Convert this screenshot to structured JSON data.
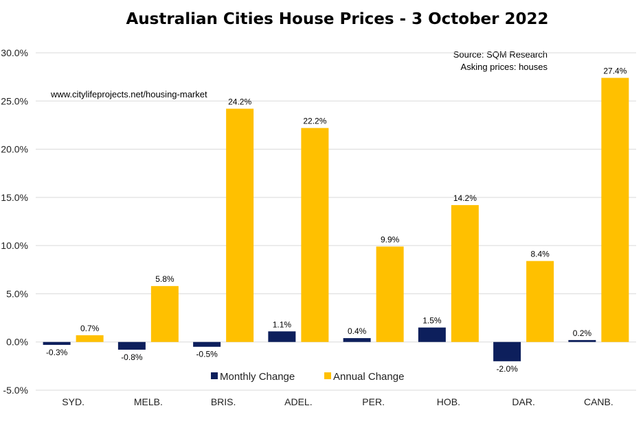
{
  "chart_data": {
    "type": "bar",
    "title": "Australian Cities House Prices - 3 October 2022",
    "notes": {
      "source": "Source:  SQM Research",
      "asking": "Asking prices: houses",
      "url": "www.citylifeprojects.net/housing-market"
    },
    "categories": [
      "SYD.",
      "MELB.",
      "BRIS.",
      "ADEL.",
      "PER.",
      "HOB.",
      "DAR.",
      "CANB."
    ],
    "series": [
      {
        "name": "Monthly Change",
        "color": "#0d1f5c",
        "values": [
          -0.3,
          -0.8,
          -0.5,
          1.1,
          0.4,
          1.5,
          -2.0,
          0.2
        ],
        "labels": [
          "-0.3%",
          "-0.8%",
          "-0.5%",
          "1.1%",
          "0.4%",
          "1.5%",
          "-2.0%",
          "0.2%"
        ]
      },
      {
        "name": "Annual Change",
        "color": "#ffc000",
        "values": [
          0.7,
          5.8,
          24.2,
          22.2,
          9.9,
          14.2,
          8.4,
          27.4
        ],
        "labels": [
          "0.7%",
          "5.8%",
          "24.2%",
          "22.2%",
          "9.9%",
          "14.2%",
          "8.4%",
          "27.4%"
        ]
      }
    ],
    "ylim": [
      -5,
      30
    ],
    "yticks": [
      30,
      25,
      20,
      15,
      10,
      5,
      0,
      -5
    ],
    "ytick_labels": [
      "30.0%",
      "25.0%",
      "20.0%",
      "15.0%",
      "10.0%",
      "5.0%",
      "0.0%",
      "-5.0%"
    ],
    "grid": true,
    "legend": "bottom-center"
  }
}
